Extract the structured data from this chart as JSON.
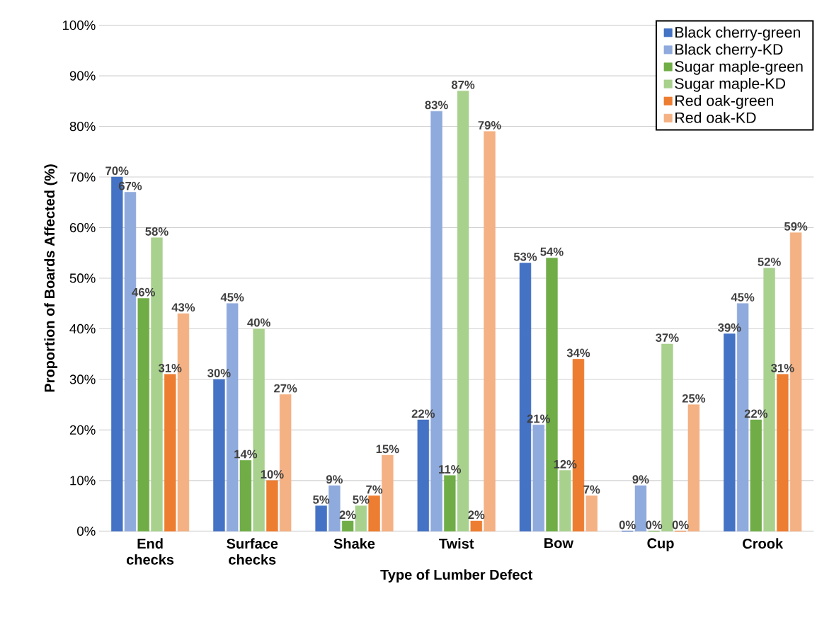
{
  "chart_data": {
    "type": "bar",
    "xlabel": "Type of Lumber Defect",
    "ylabel": "Proportion of Boards Affected (%)",
    "categories": [
      "End checks",
      "Surface checks",
      "Shake",
      "Twist",
      "Bow",
      "Cup",
      "Crook"
    ],
    "series": [
      {
        "name": "Black cherry-green",
        "color": "#4472c4",
        "values": [
          70,
          30,
          5,
          22,
          53,
          0,
          39
        ],
        "value_labels": [
          "70%",
          "30%",
          "5%",
          "22%",
          "53%",
          "0%",
          "39%"
        ]
      },
      {
        "name": "Black cherry-KD",
        "color": "#8faadc",
        "values": [
          67,
          45,
          9,
          83,
          21,
          9,
          45
        ],
        "value_labels": [
          "67%",
          "45%",
          "9%",
          "83%",
          "21%",
          "9%",
          "45%"
        ]
      },
      {
        "name": "Sugar maple-green",
        "color": "#70ad47",
        "values": [
          46,
          14,
          2,
          11,
          54,
          0,
          22
        ],
        "value_labels": [
          "46%",
          "14%",
          "2%",
          "11%",
          "54%",
          "0%",
          "22%"
        ]
      },
      {
        "name": "Sugar maple-KD",
        "color": "#a9d18e",
        "values": [
          58,
          40,
          5,
          87,
          12,
          37,
          52
        ],
        "value_labels": [
          "58%",
          "40%",
          "5%",
          "87%",
          "12%",
          "37%",
          "52%"
        ]
      },
      {
        "name": "Red oak-green",
        "color": "#ed7d31",
        "values": [
          31,
          10,
          7,
          2,
          34,
          0,
          31
        ],
        "value_labels": [
          "31%",
          "10%",
          "7%",
          "2%",
          "34%",
          "0%",
          "31%"
        ]
      },
      {
        "name": "Red oak-KD",
        "color": "#f4b183",
        "values": [
          43,
          27,
          15,
          79,
          7,
          25,
          59
        ],
        "value_labels": [
          "43%",
          "27%",
          "15%",
          "79%",
          "7%",
          "25%",
          "59%"
        ]
      }
    ],
    "ylim": [
      0,
      100
    ],
    "yticks": [
      {
        "value": 0,
        "label": "0%"
      },
      {
        "value": 10,
        "label": "10%"
      },
      {
        "value": 20,
        "label": "20%"
      },
      {
        "value": 30,
        "label": "30%"
      },
      {
        "value": 40,
        "label": "40%"
      },
      {
        "value": 50,
        "label": "50%"
      },
      {
        "value": 60,
        "label": "60%"
      },
      {
        "value": 70,
        "label": "70%"
      },
      {
        "value": 80,
        "label": "80%"
      },
      {
        "value": 90,
        "label": "90%"
      },
      {
        "value": 100,
        "label": "100%"
      }
    ],
    "grid": "y",
    "legend": "top right"
  }
}
